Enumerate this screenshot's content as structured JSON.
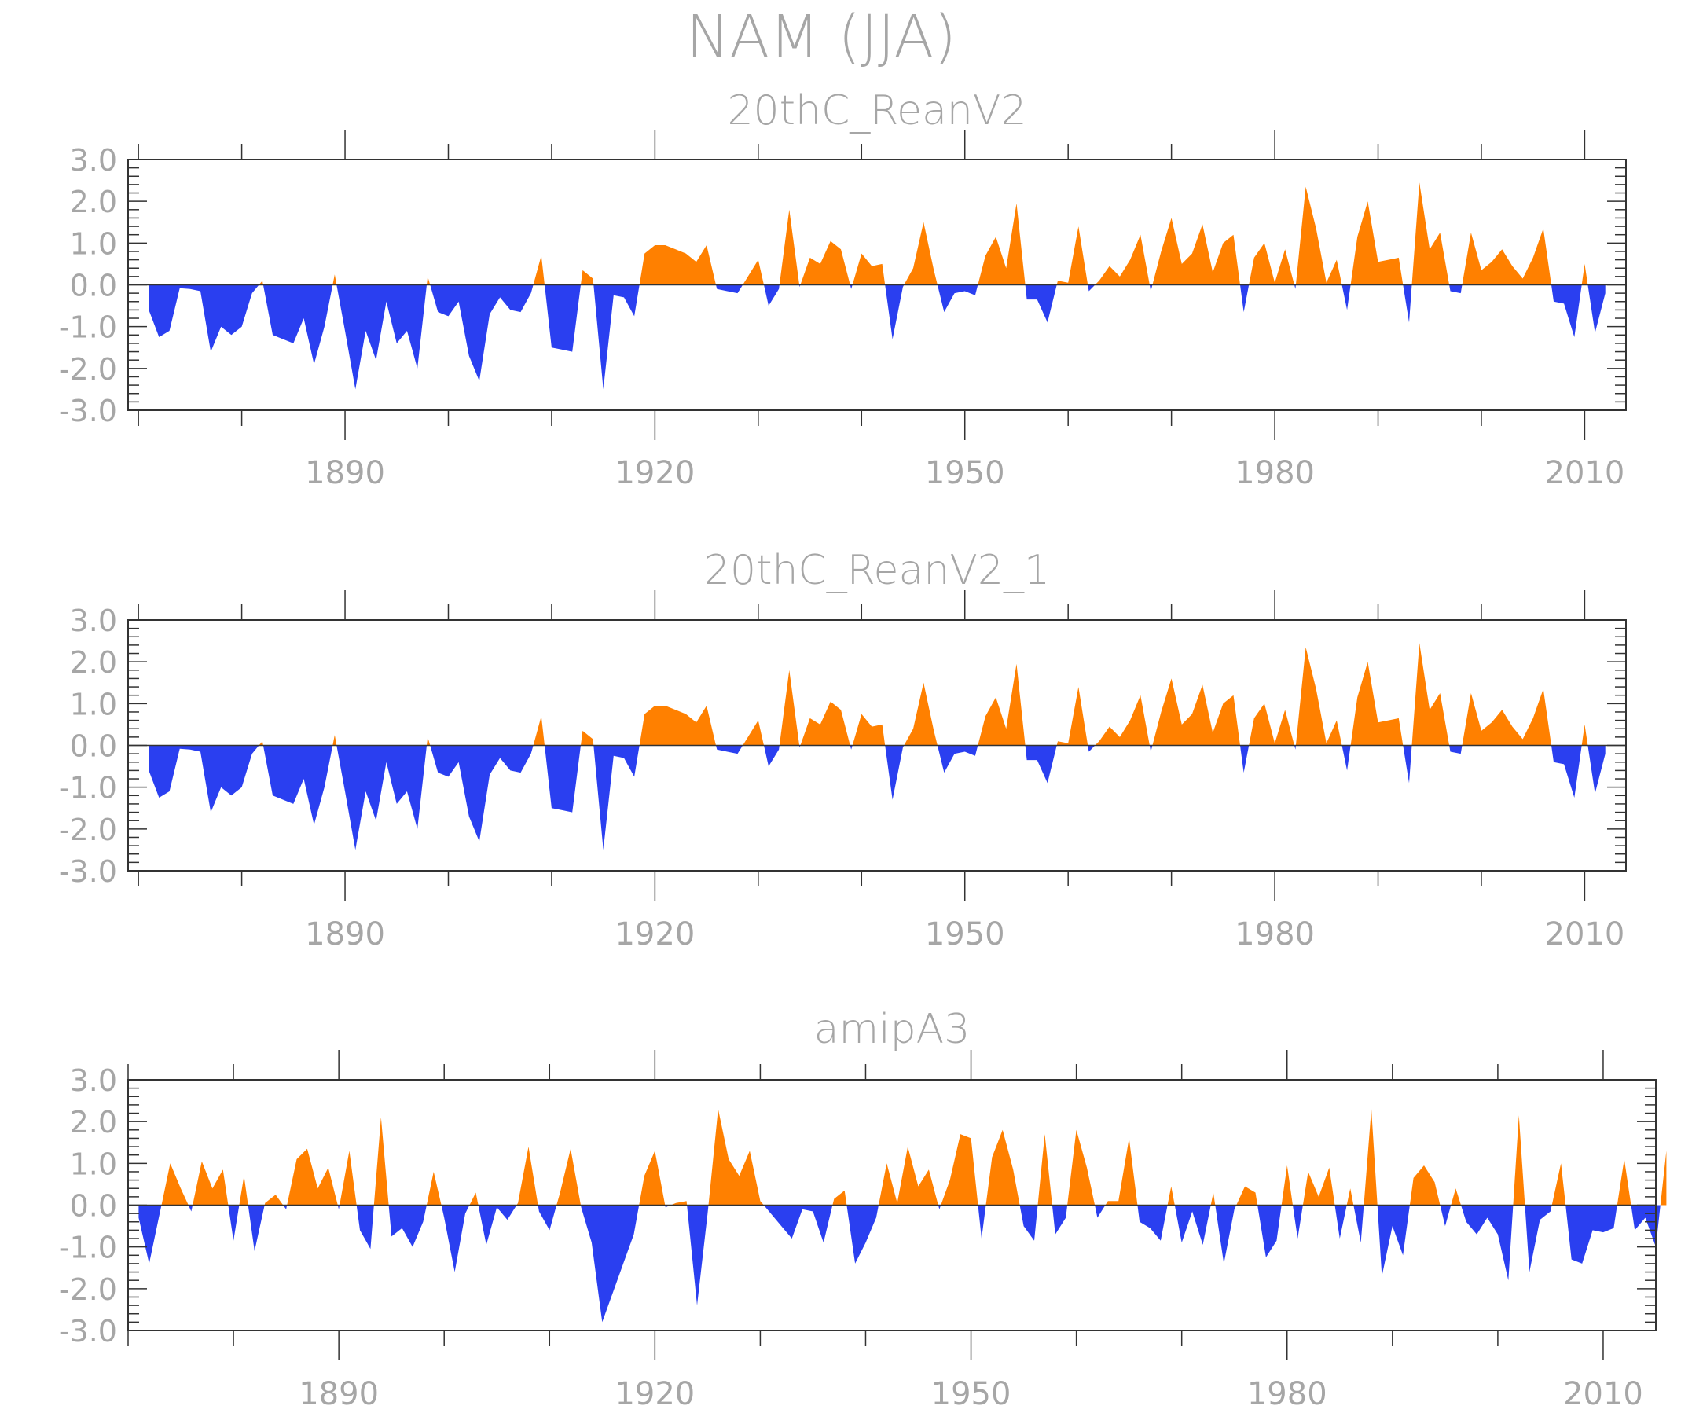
{
  "title": "NAM (JJA)",
  "colors": {
    "positive": "#ff8000",
    "negative": "#2a3ff0",
    "axis": "#333333",
    "text": "#a6a6a6"
  },
  "chart_data": [
    {
      "type": "area",
      "title": "20thC_ReanV2",
      "xlabel": "",
      "ylabel": "",
      "x_start": 1871,
      "xlim": [
        1869,
        2014
      ],
      "ylim": [
        -3.0,
        3.0
      ],
      "xticks_labeled": [
        1890,
        1920,
        1950,
        1980,
        2010
      ],
      "yticks": [
        "3.0",
        "2.0",
        "1.0",
        "0.0",
        "-1.0",
        "-2.0",
        "-3.0"
      ],
      "values": [
        -0.6,
        -1.25,
        -1.1,
        -0.08,
        -0.1,
        -0.15,
        -1.6,
        -1.0,
        -1.2,
        -1.0,
        -0.2,
        0.1,
        -1.2,
        -1.3,
        -1.4,
        -0.8,
        -1.9,
        -1.0,
        0.25,
        -1.1,
        -2.5,
        -1.1,
        -1.8,
        -0.4,
        -1.4,
        -1.1,
        -2.0,
        0.2,
        -0.65,
        -0.75,
        -0.4,
        -1.7,
        -2.3,
        -0.7,
        -0.3,
        -0.6,
        -0.65,
        -0.2,
        0.7,
        -1.5,
        -1.55,
        -1.6,
        0.35,
        0.15,
        -2.5,
        -0.25,
        -0.3,
        -0.75,
        0.75,
        0.95,
        0.95,
        0.85,
        0.75,
        0.55,
        0.95,
        -0.1,
        -0.15,
        -0.2,
        0.2,
        0.6,
        -0.5,
        -0.1,
        1.8,
        -0.05,
        0.65,
        0.5,
        1.05,
        0.85,
        -0.1,
        0.75,
        0.45,
        0.5,
        -1.3,
        -0.05,
        0.4,
        1.5,
        0.35,
        -0.65,
        -0.2,
        -0.15,
        -0.25,
        0.7,
        1.15,
        0.4,
        1.95,
        -0.35,
        -0.35,
        -0.9,
        0.1,
        0.05,
        1.4,
        -0.15,
        0.1,
        0.45,
        0.2,
        0.6,
        1.2,
        -0.15,
        0.8,
        1.6,
        0.5,
        0.75,
        1.45,
        0.3,
        1.0,
        1.2,
        -0.65,
        0.65,
        1.0,
        0.05,
        0.85,
        -0.1,
        2.35,
        1.35,
        0.05,
        0.6,
        -0.6,
        1.15,
        2.0,
        0.55,
        0.6,
        0.65,
        -0.9,
        2.45,
        0.85,
        1.25,
        -0.15,
        -0.2,
        1.25,
        0.35,
        0.55,
        0.85,
        0.45,
        0.15,
        0.65,
        1.35,
        -0.4,
        -0.45,
        -1.25,
        0.5,
        -1.15,
        -0.2
      ]
    },
    {
      "type": "area",
      "title": "20thC_ReanV2_1",
      "xlabel": "",
      "ylabel": "",
      "x_start": 1871,
      "xlim": [
        1869,
        2014
      ],
      "ylim": [
        -3.0,
        3.0
      ],
      "xticks_labeled": [
        1890,
        1920,
        1950,
        1980,
        2010
      ],
      "yticks": [
        "3.0",
        "2.0",
        "1.0",
        "0.0",
        "-1.0",
        "-2.0",
        "-3.0"
      ],
      "values": [
        -0.6,
        -1.25,
        -1.1,
        -0.08,
        -0.1,
        -0.15,
        -1.6,
        -1.0,
        -1.2,
        -1.0,
        -0.2,
        0.1,
        -1.2,
        -1.3,
        -1.4,
        -0.8,
        -1.9,
        -1.0,
        0.25,
        -1.1,
        -2.5,
        -1.1,
        -1.8,
        -0.4,
        -1.4,
        -1.1,
        -2.0,
        0.2,
        -0.65,
        -0.75,
        -0.4,
        -1.7,
        -2.3,
        -0.7,
        -0.3,
        -0.6,
        -0.65,
        -0.2,
        0.7,
        -1.5,
        -1.55,
        -1.6,
        0.35,
        0.15,
        -2.5,
        -0.25,
        -0.3,
        -0.75,
        0.75,
        0.95,
        0.95,
        0.85,
        0.75,
        0.55,
        0.95,
        -0.1,
        -0.15,
        -0.2,
        0.2,
        0.6,
        -0.5,
        -0.1,
        1.8,
        -0.05,
        0.65,
        0.5,
        1.05,
        0.85,
        -0.1,
        0.75,
        0.45,
        0.5,
        -1.3,
        -0.05,
        0.4,
        1.5,
        0.35,
        -0.65,
        -0.2,
        -0.15,
        -0.25,
        0.7,
        1.15,
        0.4,
        1.95,
        -0.35,
        -0.35,
        -0.9,
        0.1,
        0.05,
        1.4,
        -0.15,
        0.1,
        0.45,
        0.2,
        0.6,
        1.2,
        -0.15,
        0.8,
        1.6,
        0.5,
        0.75,
        1.45,
        0.3,
        1.0,
        1.2,
        -0.65,
        0.65,
        1.0,
        0.05,
        0.85,
        -0.1,
        2.35,
        1.35,
        0.05,
        0.6,
        -0.6,
        1.15,
        2.0,
        0.55,
        0.6,
        0.65,
        -0.9,
        2.45,
        0.85,
        1.25,
        -0.15,
        -0.2,
        1.25,
        0.35,
        0.55,
        0.85,
        0.45,
        0.15,
        0.65,
        1.35,
        -0.4,
        -0.45,
        -1.25,
        0.5,
        -1.15,
        -0.2
      ]
    },
    {
      "type": "area",
      "title": "amipA3",
      "xlabel": "",
      "ylabel": "",
      "x_start": 1871,
      "xlim": [
        1870,
        2015
      ],
      "ylim": [
        -3.0,
        3.0
      ],
      "xticks_labeled": [
        1890,
        1920,
        1950,
        1980,
        2010
      ],
      "yticks": [
        "3.0",
        "2.0",
        "1.0",
        "0.0",
        "-1.0",
        "-2.0",
        "-3.0"
      ],
      "values": [
        -0.3,
        -1.4,
        -0.2,
        1.0,
        0.4,
        -0.15,
        1.05,
        0.4,
        0.85,
        -0.85,
        0.7,
        -1.1,
        0.05,
        0.25,
        -0.1,
        1.1,
        1.35,
        0.4,
        0.9,
        -0.1,
        1.3,
        -0.6,
        -1.05,
        2.1,
        -0.75,
        -0.55,
        -1.0,
        -0.4,
        0.8,
        -0.3,
        -1.6,
        -0.2,
        0.3,
        -0.95,
        -0.05,
        -0.35,
        0.05,
        1.4,
        -0.15,
        -0.6,
        0.3,
        1.35,
        -0.05,
        -0.9,
        -2.8,
        -2.1,
        -1.4,
        -0.7,
        0.7,
        1.3,
        -0.05,
        0.05,
        0.1,
        -2.4,
        -0.2,
        2.3,
        1.1,
        0.7,
        1.3,
        0.1,
        -0.2,
        -0.5,
        -0.8,
        -0.1,
        -0.15,
        -0.9,
        0.15,
        0.35,
        -1.4,
        -0.9,
        -0.3,
        1.0,
        0.05,
        1.4,
        0.45,
        0.85,
        -0.1,
        0.6,
        1.7,
        1.6,
        -0.8,
        1.15,
        1.8,
        0.85,
        -0.5,
        -0.85,
        1.7,
        -0.7,
        -0.3,
        1.8,
        0.9,
        -0.3,
        0.1,
        0.1,
        1.6,
        -0.4,
        -0.55,
        -0.85,
        0.45,
        -0.9,
        -0.15,
        -0.95,
        0.3,
        -1.4,
        -0.1,
        0.45,
        0.3,
        -1.25,
        -0.85,
        0.95,
        -0.8,
        0.8,
        0.2,
        0.9,
        -0.8,
        0.4,
        -0.9,
        2.3,
        -1.7,
        -0.5,
        -1.2,
        0.65,
        0.95,
        0.55,
        -0.5,
        0.4,
        -0.4,
        -0.7,
        -0.3,
        -0.7,
        -1.8,
        2.15,
        -1.6,
        -0.35,
        -0.15,
        1.0,
        -1.3,
        -1.4,
        -0.6,
        -0.65,
        -0.55,
        1.1,
        -0.6,
        -0.3,
        -1.0,
        1.3
      ]
    }
  ]
}
